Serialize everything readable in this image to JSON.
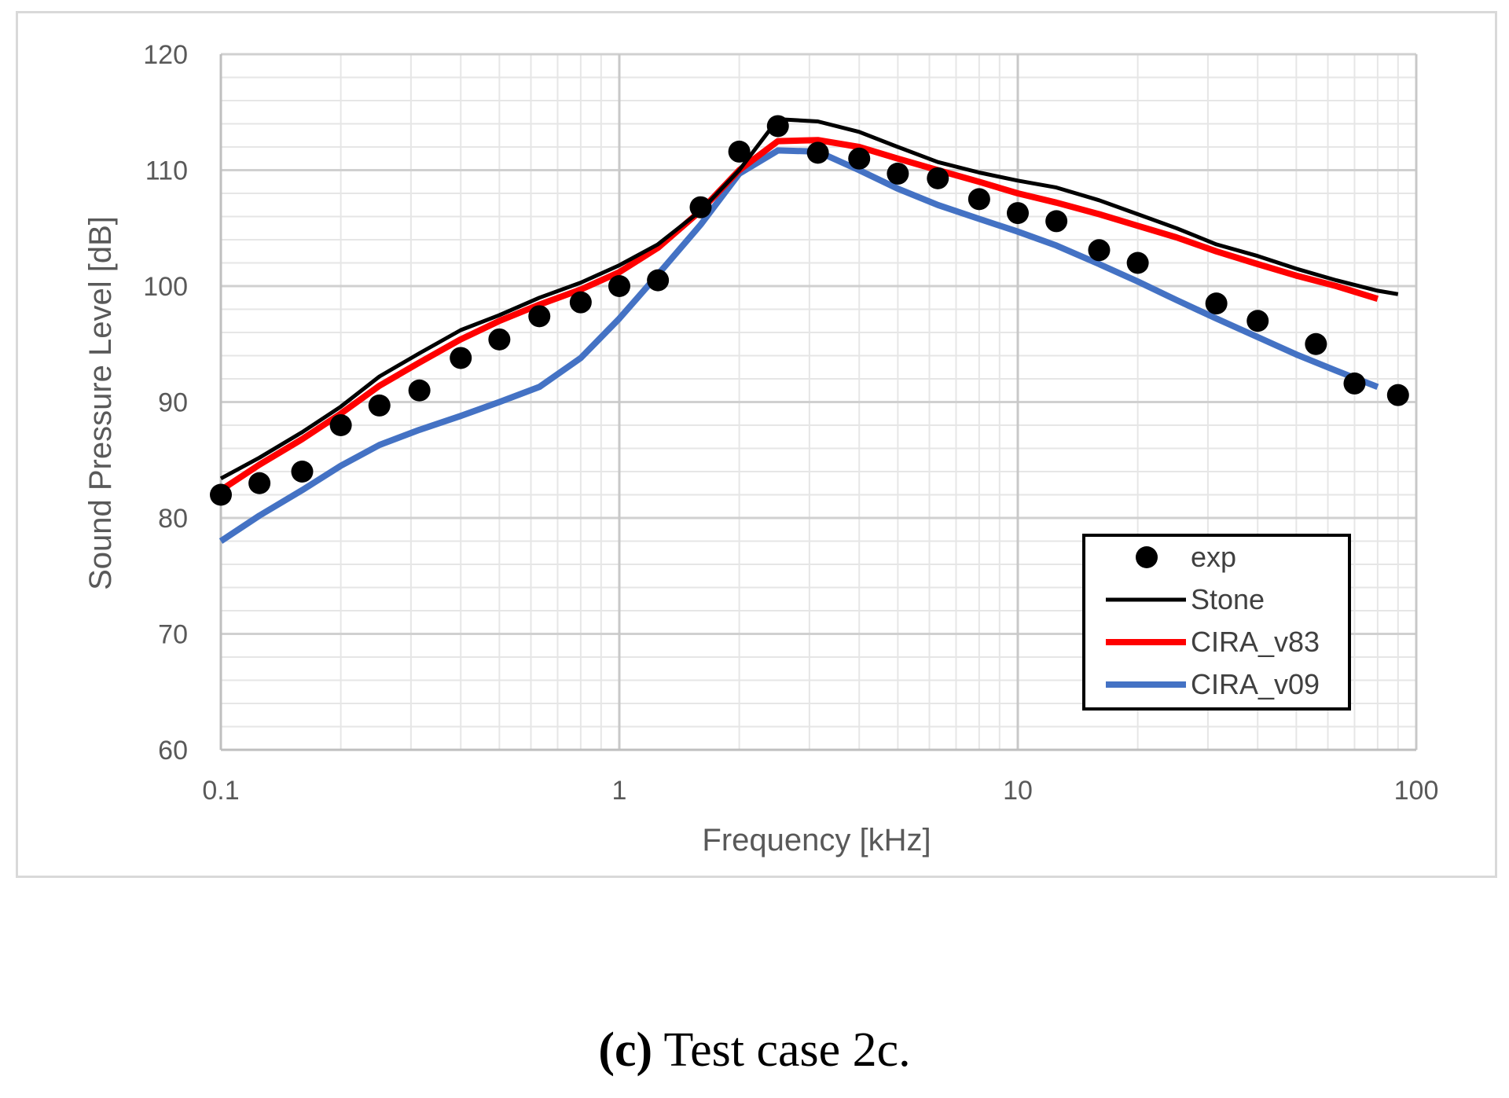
{
  "chart_data": {
    "type": "line",
    "title": "",
    "xlabel": "Frequency [kHz]",
    "ylabel": "Sound Pressure Level [dB]",
    "xscale": "log",
    "xlim": [
      0.1,
      100
    ],
    "ylim": [
      60,
      120
    ],
    "xticks": [
      0.1,
      1,
      10,
      100
    ],
    "xtick_labels": [
      "0.1",
      "1",
      "10",
      "100"
    ],
    "yticks": [
      60,
      70,
      80,
      90,
      100,
      110,
      120
    ],
    "ytick_labels": [
      "60",
      "70",
      "80",
      "90",
      "100",
      "110",
      "120"
    ],
    "grid": true,
    "legend_position": "bottom-right",
    "series": [
      {
        "name": "exp",
        "style": "markers",
        "color": "#000000",
        "x": [
          0.1,
          0.125,
          0.16,
          0.2,
          0.25,
          0.315,
          0.4,
          0.5,
          0.63,
          0.8,
          1.0,
          1.25,
          1.6,
          2.0,
          2.5,
          3.15,
          4.0,
          5.0,
          6.3,
          8.0,
          10.0,
          12.5,
          16.0,
          20.0,
          31.5,
          40.0,
          56.0,
          70.0,
          90.0
        ],
        "y": [
          82.0,
          83.0,
          84.0,
          88.0,
          89.7,
          91.0,
          93.8,
          95.4,
          97.4,
          98.6,
          100.0,
          100.5,
          106.8,
          111.6,
          113.8,
          111.5,
          111.0,
          109.7,
          109.3,
          107.5,
          106.3,
          105.6,
          103.1,
          102.0,
          98.5,
          97.0,
          95.0,
          91.6,
          90.6
        ]
      },
      {
        "name": "Stone",
        "style": "line",
        "color": "#000000",
        "x": [
          0.1,
          0.125,
          0.16,
          0.2,
          0.25,
          0.315,
          0.4,
          0.5,
          0.63,
          0.8,
          1.0,
          1.25,
          1.6,
          2.0,
          2.5,
          3.15,
          4.0,
          5.0,
          6.3,
          8.0,
          10.0,
          12.5,
          16.0,
          20.0,
          25.0,
          31.5,
          40.0,
          50.0,
          63.0,
          80.0,
          90.0
        ],
        "y": [
          83.4,
          85.2,
          87.4,
          89.6,
          92.2,
          94.2,
          96.2,
          97.5,
          99.0,
          100.3,
          101.8,
          103.6,
          106.5,
          110.0,
          114.4,
          114.2,
          113.3,
          112.0,
          110.7,
          109.8,
          109.1,
          108.5,
          107.4,
          106.2,
          105.0,
          103.6,
          102.6,
          101.5,
          100.5,
          99.6,
          99.3
        ]
      },
      {
        "name": "CIRA_v83",
        "style": "line",
        "color": "#ff0000",
        "x": [
          0.1,
          0.125,
          0.16,
          0.2,
          0.25,
          0.315,
          0.4,
          0.5,
          0.63,
          0.8,
          1.0,
          1.25,
          1.6,
          2.0,
          2.5,
          3.15,
          4.0,
          5.0,
          6.3,
          8.0,
          10.0,
          12.5,
          16.0,
          20.0,
          25.0,
          31.5,
          40.0,
          50.0,
          63.0,
          80.0
        ],
        "y": [
          82.4,
          84.6,
          86.8,
          89.0,
          91.4,
          93.4,
          95.4,
          97.0,
          98.4,
          99.7,
          101.2,
          103.3,
          106.5,
          110.0,
          112.5,
          112.6,
          112.0,
          111.0,
          110.0,
          109.0,
          108.0,
          107.2,
          106.2,
          105.2,
          104.2,
          103.0,
          101.9,
          100.9,
          100.0,
          98.9
        ]
      },
      {
        "name": "CIRA_v09",
        "style": "line",
        "color": "#4472c4",
        "x": [
          0.1,
          0.125,
          0.16,
          0.2,
          0.25,
          0.315,
          0.4,
          0.5,
          0.63,
          0.8,
          1.0,
          1.25,
          1.6,
          2.0,
          2.5,
          3.15,
          4.0,
          5.0,
          6.3,
          8.0,
          10.0,
          12.5,
          16.0,
          20.0,
          25.0,
          31.5,
          40.0,
          50.0,
          63.0,
          80.0
        ],
        "y": [
          78.0,
          80.2,
          82.4,
          84.5,
          86.3,
          87.6,
          88.8,
          90.0,
          91.3,
          93.8,
          97.2,
          101.0,
          105.3,
          109.7,
          111.7,
          111.6,
          110.0,
          108.4,
          107.0,
          105.8,
          104.7,
          103.5,
          101.9,
          100.4,
          98.8,
          97.2,
          95.6,
          94.1,
          92.7,
          91.3
        ]
      }
    ]
  },
  "caption": {
    "label": "(c)",
    "text": "Test case 2c."
  }
}
